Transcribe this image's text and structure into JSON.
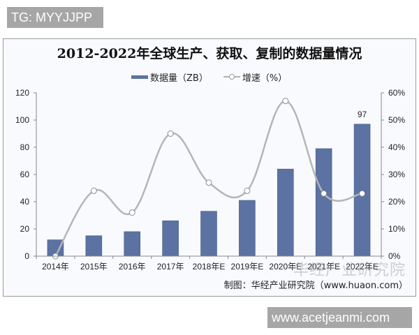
{
  "watermarks": {
    "top": "TG: MYYJJPP",
    "bottom": "www.acetjeanmi.com",
    "faint": "华经产业研究院"
  },
  "legend": {
    "bar_label": "数据量（ZB）",
    "line_label": "增速（%）"
  },
  "source": "制图：华经产业研究院（www.huaon.com）",
  "colors": {
    "bar": "#5b72a3",
    "line": "#b5b5b5",
    "background": "#f8fafd"
  },
  "chart_data": {
    "type": "bar+line",
    "title": "2012-2022年全球生产、获取、复制的数据量情况",
    "categories": [
      "2014年",
      "2015年",
      "2016年",
      "2017年",
      "2018年E",
      "2019年E",
      "2020年E",
      "2021年E",
      "2022年E"
    ],
    "series": [
      {
        "name": "数据量（ZB）",
        "type": "bar",
        "axis": "left",
        "values": [
          12,
          15,
          18,
          26,
          33,
          41,
          64,
          79,
          97
        ]
      },
      {
        "name": "增速（%）",
        "type": "line",
        "axis": "right",
        "smooth": true,
        "values": [
          0,
          24,
          16,
          45,
          27,
          24,
          57,
          23,
          23
        ]
      }
    ],
    "annotations": [
      {
        "category": "2022年E",
        "text": "97"
      }
    ],
    "left_axis": {
      "min": 0,
      "max": 120,
      "ticks": [
        0,
        20,
        40,
        60,
        80,
        100,
        120
      ]
    },
    "right_axis": {
      "min": 0,
      "max": 60,
      "ticks": [
        "0%",
        "10%",
        "20%",
        "30%",
        "40%",
        "50%",
        "60%"
      ]
    },
    "xlabel": "",
    "ylabel": "",
    "grid": false,
    "legend_position": "top"
  }
}
